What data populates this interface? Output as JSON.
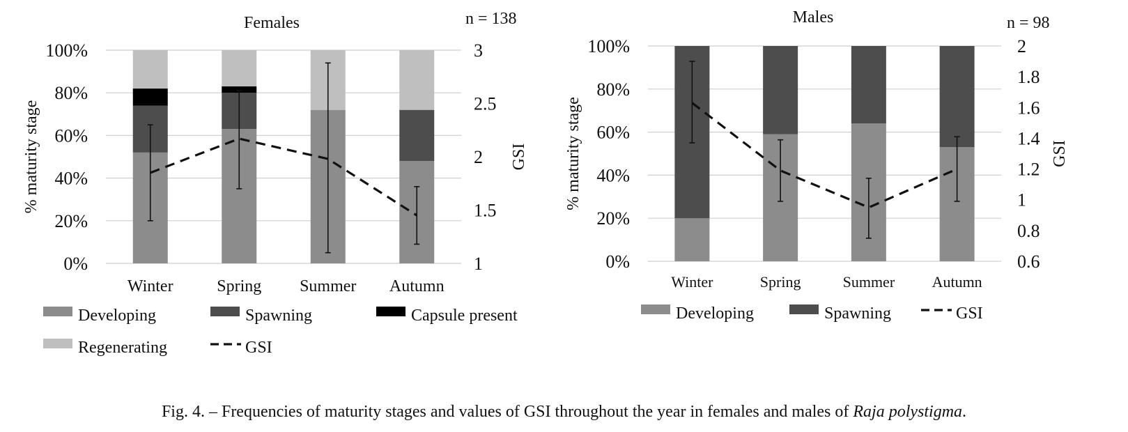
{
  "caption": {
    "text": "Fig. 4. – Frequencies of maturity stages and values of GSI throughout the year in females and males of ",
    "species": "Raja polystigma",
    "end": "."
  },
  "chart_data": [
    {
      "type": "bar",
      "stacked": true,
      "percent": true,
      "title": "Females",
      "sample_size": "n = 138",
      "ylabel": "% maturity stage",
      "y2label": "GSI",
      "categories": [
        "Winter",
        "Spring",
        "Summer",
        "Autumn"
      ],
      "ylim": [
        0,
        100
      ],
      "yticks": [
        "0%",
        "20%",
        "40%",
        "60%",
        "80%",
        "100%"
      ],
      "y2lim": [
        1,
        3
      ],
      "y2ticks": [
        "1",
        "1.5",
        "2",
        "2.5",
        "3"
      ],
      "grid": true,
      "legend_position": "bottom",
      "series": [
        {
          "name": "Developing",
          "color": "#8c8c8c",
          "values": [
            52,
            63,
            72,
            48
          ]
        },
        {
          "name": "Spawning",
          "color": "#4d4d4d",
          "values": [
            22,
            17,
            0,
            24
          ]
        },
        {
          "name": "Capsule present",
          "color": "#000000",
          "values": [
            8,
            3,
            0,
            0
          ]
        },
        {
          "name": "Regenerating",
          "color": "#bfbfbf",
          "values": [
            18,
            17,
            28,
            28
          ]
        }
      ],
      "line": {
        "name": "GSI",
        "style": "dashed",
        "values": [
          1.85,
          2.17,
          1.98,
          1.45
        ],
        "error_low": [
          1.4,
          1.7,
          1.1,
          1.18
        ],
        "error_high": [
          2.3,
          2.62,
          2.88,
          1.72
        ]
      }
    },
    {
      "type": "bar",
      "stacked": true,
      "percent": true,
      "title": "Males",
      "sample_size": "n = 98",
      "ylabel": "% maturity stage",
      "y2label": "GSI",
      "categories": [
        "Winter",
        "Spring",
        "Summer",
        "Autumn"
      ],
      "ylim": [
        0,
        100
      ],
      "yticks": [
        "0%",
        "20%",
        "40%",
        "60%",
        "80%",
        "100%"
      ],
      "y2lim": [
        0.6,
        2
      ],
      "y2ticks": [
        "0.6",
        "0.8",
        "1",
        "1.2",
        "1.4",
        "1.6",
        "1.8",
        "2"
      ],
      "grid": true,
      "legend_position": "bottom",
      "series": [
        {
          "name": "Developing",
          "color": "#8c8c8c",
          "values": [
            20,
            59,
            64,
            53
          ]
        },
        {
          "name": "Spawning",
          "color": "#4d4d4d",
          "values": [
            80,
            41,
            36,
            47
          ]
        }
      ],
      "line": {
        "name": "GSI",
        "style": "dashed",
        "values": [
          1.63,
          1.19,
          0.95,
          1.2
        ],
        "error_low": [
          1.37,
          0.99,
          0.75,
          0.99
        ],
        "error_high": [
          1.9,
          1.39,
          1.14,
          1.41
        ]
      }
    }
  ]
}
